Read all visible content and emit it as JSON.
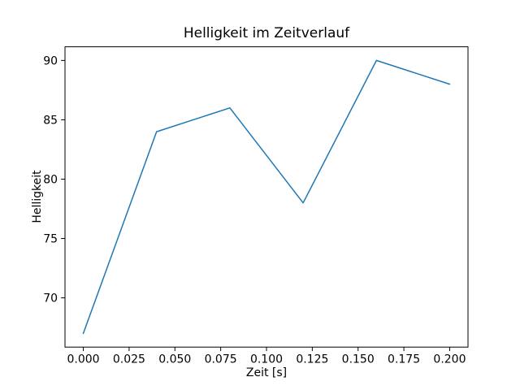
{
  "figure": {
    "background": "#ffffff"
  },
  "chart_data": {
    "type": "line",
    "title": "Helligkeit im Zeitverlauf",
    "xlabel": "Zeit [s]",
    "ylabel": "Helligkeit",
    "x": [
      0.0,
      0.04,
      0.08,
      0.12,
      0.16,
      0.2
    ],
    "y": [
      67,
      84,
      86,
      78,
      90,
      88
    ],
    "xlim": [
      -0.01,
      0.21
    ],
    "ylim": [
      65.85,
      91.15
    ],
    "xticks": [
      0.0,
      0.025,
      0.05,
      0.075,
      0.1,
      0.125,
      0.15,
      0.175,
      0.2
    ],
    "xtick_labels": [
      "0.000",
      "0.025",
      "0.050",
      "0.075",
      "0.100",
      "0.125",
      "0.150",
      "0.175",
      "0.200"
    ],
    "yticks": [
      70,
      75,
      80,
      85,
      90
    ],
    "ytick_labels": [
      "70",
      "75",
      "80",
      "85",
      "90"
    ],
    "line_color": "#1f77b4",
    "axis_color": "#000000",
    "grid": false,
    "legend": "none",
    "marker": "none"
  }
}
